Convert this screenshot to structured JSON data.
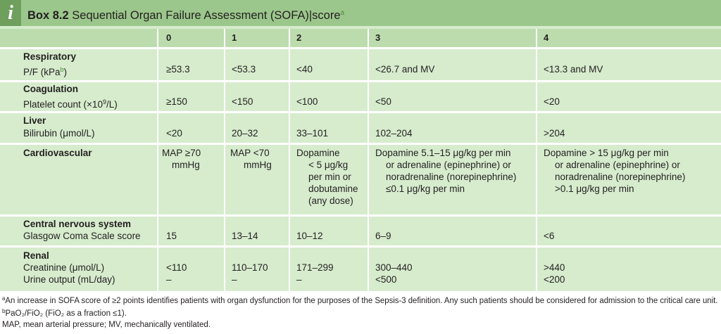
{
  "box": {
    "icon_glyph": "i",
    "label": "Box 8.2",
    "title": "Sequential Organ Failure Assessment (SOFA)",
    "title_tail": "score",
    "title_marker": "a"
  },
  "columns": [
    "0",
    "1",
    "2",
    "3",
    "4"
  ],
  "rows": [
    {
      "category": "Respiratory",
      "measure_prefix": "P/F (kPa",
      "measure_marker": "b",
      "measure_suffix": ")",
      "values": [
        "≥53.3",
        "<53.3",
        "<40",
        "<26.7 and MV",
        "<13.3 and MV"
      ]
    },
    {
      "category": "Coagulation",
      "measure_prefix": "Platelet count (×10",
      "measure_marker": "9",
      "measure_suffix": "/L)",
      "values": [
        "≥150",
        "<150",
        "<100",
        "<50",
        "<20"
      ]
    },
    {
      "category": "Liver",
      "measure": "Bilirubin (μmol/L)",
      "values": [
        "<20",
        "20–32",
        "33–101",
        "102–204",
        ">204"
      ]
    },
    {
      "category": "Cardiovascular",
      "values": [
        [
          "MAP ≥70",
          "mmHg"
        ],
        [
          "MAP <70",
          "mmHg"
        ],
        [
          "Dopamine",
          "< 5 μg/kg",
          "per min or",
          "dobutamine",
          "(any dose)"
        ],
        [
          "Dopamine 5.1–15 μg/kg per min",
          "or adrenaline (epinephrine) or",
          "noradrenaline (norepinephrine)",
          "≤0.1 μg/kg per min"
        ],
        [
          "Dopamine > 15 μg/kg per min",
          "or adrenaline (epinephrine) or",
          "noradrenaline (norepinephrine)",
          ">0.1 μg/kg per min"
        ]
      ]
    },
    {
      "category": "Central nervous system",
      "measure": "Glasgow Coma Scale score",
      "values": [
        "15",
        "13–14",
        "10–12",
        "6–9",
        "<6"
      ]
    },
    {
      "category": "Renal",
      "measures": [
        "Creatinine (μmol/L)",
        "Urine output (mL/day)"
      ],
      "values": [
        [
          "<110",
          "–"
        ],
        [
          "110–170",
          "–"
        ],
        [
          "171–299",
          "–"
        ],
        [
          "300–440",
          "<500"
        ],
        [
          ">440",
          "<200"
        ]
      ]
    }
  ],
  "footnotes": {
    "a_marker": "a",
    "a_text": "An increase in SOFA score of ≥2 points identifies patients with organ dysfunction for the purposes of the Sepsis-3 definition. Any such patients should be considered for admission to the critical care unit.",
    "b_marker": "b",
    "b_text": "PaO₂/FiO₂ (FiO₂ as a fraction ≤1).",
    "abbreviations": "MAP, mean arterial pressure; MV, mechanically ventilated."
  }
}
